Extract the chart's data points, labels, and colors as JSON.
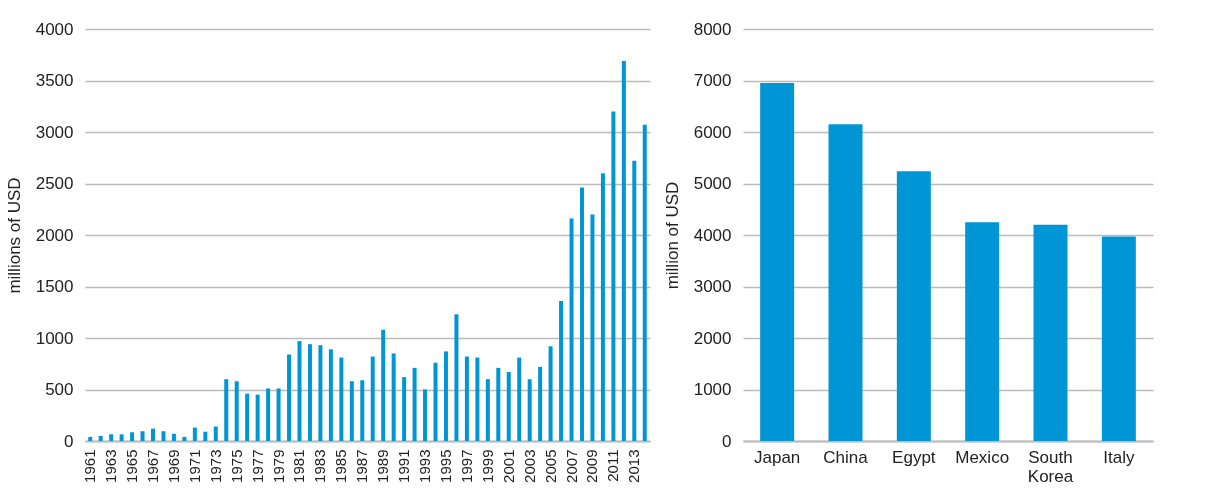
{
  "chart_data": [
    {
      "type": "bar",
      "ylabel": "millions of USD",
      "categories": [
        "1961",
        null,
        "1963",
        null,
        "1965",
        null,
        "1967",
        null,
        "1969",
        null,
        "1971",
        null,
        "1973",
        null,
        "1975",
        null,
        "1977",
        null,
        "1979",
        null,
        "1981",
        null,
        "1983",
        null,
        "1985",
        null,
        "1987",
        null,
        "1989",
        null,
        "1991",
        null,
        "1993",
        null,
        "1995",
        null,
        "1997",
        null,
        "1999",
        null,
        "2001",
        null,
        "2003",
        null,
        "2005",
        null,
        "2007",
        null,
        "2009",
        null,
        "2011",
        null,
        "2013",
        null
      ],
      "values": [
        40,
        50,
        65,
        65,
        85,
        95,
        120,
        95,
        70,
        40,
        130,
        90,
        140,
        600,
        580,
        460,
        450,
        510,
        510,
        840,
        970,
        940,
        930,
        890,
        810,
        580,
        590,
        820,
        1080,
        850,
        620,
        710,
        500,
        760,
        870,
        1230,
        820,
        810,
        600,
        710,
        670,
        810,
        600,
        720,
        920,
        1360,
        2160,
        2460,
        2200,
        2600,
        3200,
        3690,
        2720,
        3070
      ],
      "color": "#0096d6",
      "ylim": [
        0,
        4000
      ],
      "yticks": [
        0,
        500,
        1000,
        1500,
        2000,
        2500,
        3000,
        3500,
        4000
      ],
      "grid": "y"
    },
    {
      "type": "bar",
      "ylabel": "million of USD",
      "categories": [
        "Japan",
        "China",
        "Egypt",
        "Mexico",
        "South Korea",
        "Italy"
      ],
      "values": [
        6950,
        6150,
        5240,
        4250,
        4200,
        3970
      ],
      "color": "#0096d6",
      "ylim": [
        0,
        8000
      ],
      "yticks": [
        0,
        1000,
        2000,
        3000,
        4000,
        5000,
        6000,
        7000,
        8000
      ],
      "grid": "y"
    }
  ]
}
